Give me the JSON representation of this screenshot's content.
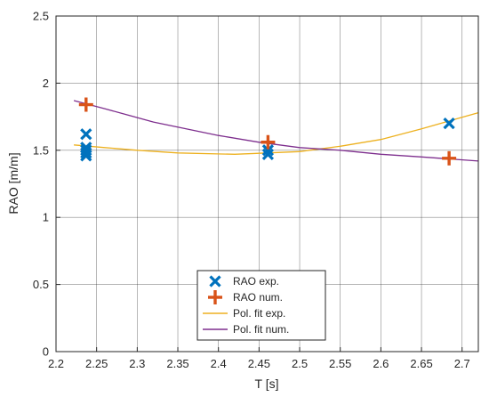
{
  "chart_data": {
    "type": "scatter",
    "xlabel": "T [s]",
    "ylabel": "RAO [m/m]",
    "xlim": [
      2.2,
      2.72
    ],
    "ylim": [
      0,
      2.5
    ],
    "x_ticks": [
      "2.2",
      "2.25",
      "2.3",
      "2.35",
      "2.4",
      "2.45",
      "2.5",
      "2.55",
      "2.6",
      "2.65",
      "2.7"
    ],
    "y_ticks": [
      "0",
      "0.5",
      "1",
      "1.5",
      "2",
      "2.5"
    ],
    "grid": true,
    "legend_position": "bottom-center",
    "series": [
      {
        "name": "RAO exp.",
        "type": "scatter",
        "marker": "x",
        "color": "#0072BD",
        "points": [
          [
            2.237,
            1.62
          ],
          [
            2.237,
            1.52
          ],
          [
            2.237,
            1.5
          ],
          [
            2.237,
            1.48
          ],
          [
            2.237,
            1.46
          ],
          [
            2.461,
            1.5
          ],
          [
            2.461,
            1.47
          ],
          [
            2.684,
            1.7
          ]
        ]
      },
      {
        "name": "RAO num.",
        "type": "scatter",
        "marker": "+",
        "color": "#D95319",
        "points": [
          [
            2.237,
            1.84
          ],
          [
            2.461,
            1.56
          ],
          [
            2.684,
            1.44
          ]
        ]
      },
      {
        "name": "Pol. fit exp.",
        "type": "line",
        "color": "#EDB120",
        "points": [
          [
            2.222,
            1.54
          ],
          [
            2.26,
            1.52
          ],
          [
            2.3,
            1.5
          ],
          [
            2.35,
            1.48
          ],
          [
            2.42,
            1.47
          ],
          [
            2.5,
            1.49
          ],
          [
            2.55,
            1.53
          ],
          [
            2.6,
            1.58
          ],
          [
            2.65,
            1.66
          ],
          [
            2.72,
            1.78
          ]
        ]
      },
      {
        "name": "Pol. fit num.",
        "type": "line",
        "color": "#7E2F8E",
        "points": [
          [
            2.222,
            1.87
          ],
          [
            2.26,
            1.81
          ],
          [
            2.32,
            1.71
          ],
          [
            2.4,
            1.61
          ],
          [
            2.45,
            1.56
          ],
          [
            2.5,
            1.52
          ],
          [
            2.55,
            1.5
          ],
          [
            2.6,
            1.47
          ],
          [
            2.65,
            1.45
          ],
          [
            2.72,
            1.42
          ]
        ]
      }
    ]
  }
}
